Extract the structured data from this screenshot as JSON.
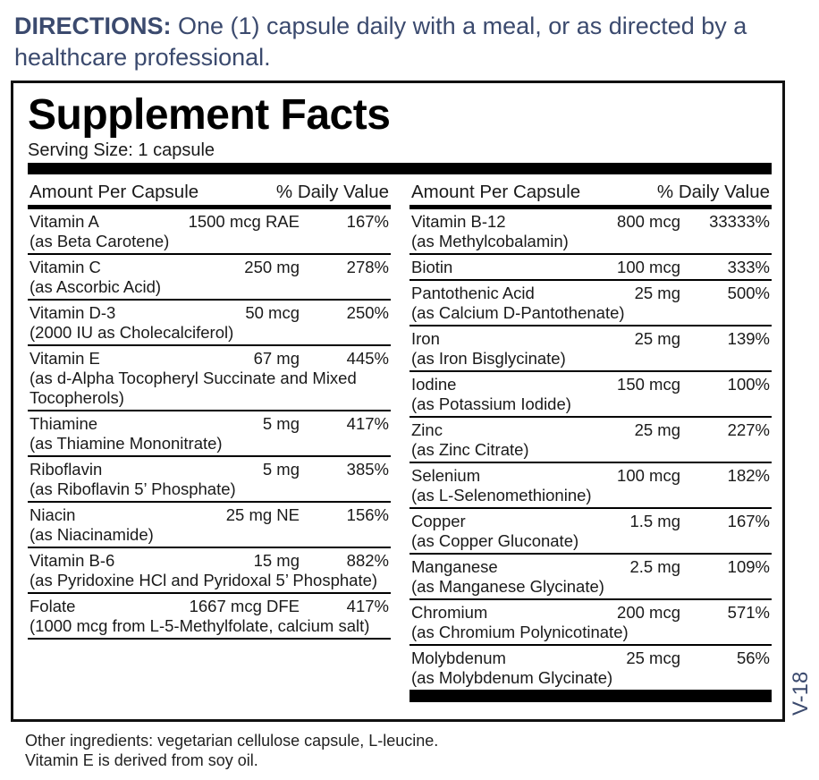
{
  "directions": {
    "label": "DIRECTIONS:",
    "text": " One (1) capsule daily with a meal, or as directed by a healthcare professional."
  },
  "title": "Supplement Facts",
  "serving_size": "Serving Size: 1 capsule",
  "header": {
    "amount": "Amount Per Capsule",
    "dv": "% Daily Value"
  },
  "left_rows": [
    {
      "name": "Vitamin A",
      "amount": "1500 mcg RAE",
      "dv": "167%",
      "sub": "(as Beta Carotene)"
    },
    {
      "name": "Vitamin C",
      "amount": "250 mg",
      "dv": "278%",
      "sub": "(as Ascorbic Acid)"
    },
    {
      "name": "Vitamin D-3",
      "amount": "50 mcg",
      "dv": "250%",
      "sub": "(2000 IU as Cholecalciferol)"
    },
    {
      "name": "Vitamin E",
      "amount": "67 mg",
      "dv": "445%",
      "sub": "(as d-Alpha Tocopheryl Succinate and Mixed Tocopherols)"
    },
    {
      "name": "Thiamine",
      "amount": "5 mg",
      "dv": "417%",
      "sub": "(as Thiamine Mononitrate)"
    },
    {
      "name": "Riboflavin",
      "amount": "5 mg",
      "dv": "385%",
      "sub": "(as Riboflavin 5’ Phosphate)"
    },
    {
      "name": "Niacin",
      "amount": "25 mg NE",
      "dv": "156%",
      "sub": "(as Niacinamide)"
    },
    {
      "name": "Vitamin B-6",
      "amount": "15 mg",
      "dv": "882%",
      "sub": "(as Pyridoxine HCl and Pyridoxal 5’ Phosphate)"
    },
    {
      "name": "Folate",
      "amount": "1667 mcg DFE",
      "dv": "417%",
      "sub": "(1000 mcg from L-5-Methylfolate, calcium salt)"
    }
  ],
  "right_rows": [
    {
      "name": "Vitamin B-12",
      "amount": "800 mcg",
      "dv": "33333%",
      "sub": "(as Methylcobalamin)"
    },
    {
      "name": "Biotin",
      "amount": "100 mcg",
      "dv": "333%",
      "sub": ""
    },
    {
      "name": "Pantothenic Acid",
      "amount": "25 mg",
      "dv": "500%",
      "sub": "(as Calcium D-Pantothenate)"
    },
    {
      "name": "Iron",
      "amount": "25 mg",
      "dv": "139%",
      "sub": "(as Iron Bisglycinate)"
    },
    {
      "name": "Iodine",
      "amount": "150 mcg",
      "dv": "100%",
      "sub": "(as Potassium Iodide)"
    },
    {
      "name": "Zinc",
      "amount": "25 mg",
      "dv": "227%",
      "sub": "(as Zinc Citrate)"
    },
    {
      "name": "Selenium",
      "amount": "100 mcg",
      "dv": "182%",
      "sub": "(as L-Selenomethionine)"
    },
    {
      "name": "Copper",
      "amount": "1.5 mg",
      "dv": "167%",
      "sub": "(as Copper Gluconate)"
    },
    {
      "name": "Manganese",
      "amount": "2.5 mg",
      "dv": "109%",
      "sub": "(as Manganese Glycinate)"
    },
    {
      "name": "Chromium",
      "amount": "200 mcg",
      "dv": "571%",
      "sub": "(as Chromium Polynicotinate)"
    },
    {
      "name": "Molybdenum",
      "amount": "25 mcg",
      "dv": "56%",
      "sub": "(as Molybdenum Glycinate)"
    }
  ],
  "footer": {
    "line1": "Other ingredients: vegetarian cellulose capsule, L-leucine.",
    "line2": "Vitamin E is derived from soy oil."
  },
  "version": "V-18"
}
